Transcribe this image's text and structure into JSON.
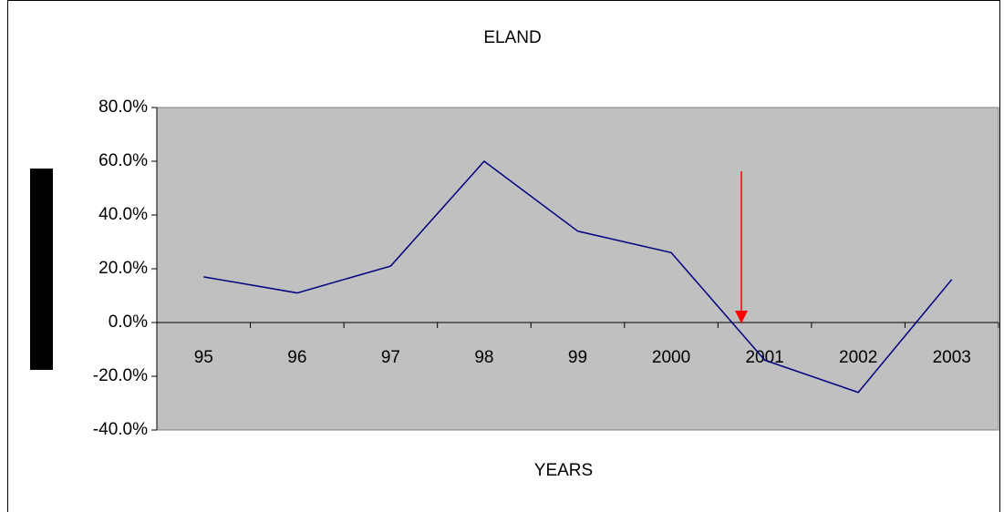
{
  "chart_data": {
    "type": "line",
    "title": "ELAND",
    "x_label": "YEARS",
    "categories": [
      "95",
      "96",
      "97",
      "98",
      "99",
      "2000",
      "2001",
      "2002",
      "2003"
    ],
    "series": [
      {
        "color": "#000080",
        "values": [
          17,
          11,
          21,
          60,
          34,
          26,
          -14,
          -26,
          16
        ]
      }
    ],
    "ylim": [
      -40,
      80
    ],
    "yticks": [
      {
        "value": -40,
        "label": "-40.0%"
      },
      {
        "value": -20,
        "label": "-20.0%"
      },
      {
        "value": 0,
        "label": "0.0%"
      },
      {
        "value": 20,
        "label": "20.0%"
      },
      {
        "value": 40,
        "label": "40.0%"
      },
      {
        "value": 60,
        "label": "60.0%"
      },
      {
        "value": 80,
        "label": "80.0%"
      }
    ],
    "grid": false,
    "plot_background": "#c0c0c0"
  }
}
